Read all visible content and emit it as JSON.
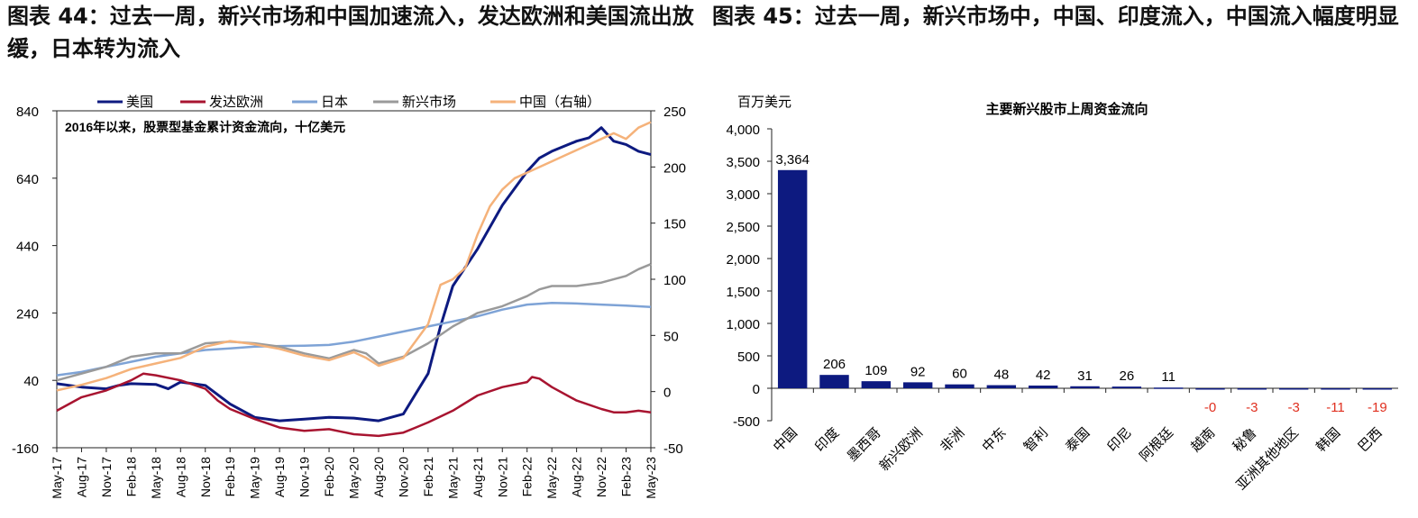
{
  "figure1_title": "图表 44：过去一周，新兴市场和中国加速流入，发达欧洲和美国流出放缓，日本转为流入",
  "figure2_title": "图表 45：过去一周，新兴市场中，中国、印度流入，中国流入幅度明显",
  "chart_data": [
    {
      "type": "line",
      "title": "",
      "annotation": "2016年以来，股票型基金累计资金流向，十亿美元",
      "x_tick_labels": [
        "May-17",
        "Aug-17",
        "Nov-17",
        "Feb-18",
        "May-18",
        "Aug-18",
        "Nov-18",
        "Feb-19",
        "May-19",
        "Aug-19",
        "Nov-19",
        "Feb-20",
        "May-20",
        "Aug-20",
        "Nov-20",
        "Feb-21",
        "May-21",
        "Aug-21",
        "Nov-21",
        "Feb-22",
        "May-22",
        "Aug-22",
        "Nov-22",
        "Feb-23",
        "May-23"
      ],
      "xlim": [
        0,
        24
      ],
      "ylim_left": [
        -160,
        840
      ],
      "yticks_left": [
        "840",
        "640",
        "440",
        "240",
        "40",
        "-160"
      ],
      "ylim_right": [
        -50,
        250
      ],
      "yticks_right": [
        "250",
        "200",
        "150",
        "100",
        "50",
        "0",
        "-50"
      ],
      "grid": false,
      "legend_position": "top",
      "series": [
        {
          "name": "美国",
          "axis": "left",
          "color": "#0d1a80",
          "x": [
            0,
            1,
            2,
            2.5,
            3,
            4,
            4.5,
            5,
            5.5,
            6,
            7,
            8,
            9,
            10,
            11,
            12,
            13,
            14,
            14.5,
            15,
            15.5,
            16,
            17,
            18,
            19,
            19.5,
            20,
            21,
            21.5,
            22,
            22.5,
            23,
            23.5,
            24
          ],
          "y": [
            30,
            20,
            15,
            25,
            30,
            28,
            15,
            35,
            30,
            25,
            -30,
            -70,
            -80,
            -75,
            -70,
            -72,
            -80,
            -60,
            0,
            60,
            200,
            320,
            430,
            560,
            660,
            700,
            720,
            750,
            760,
            790,
            750,
            740,
            720,
            710
          ]
        },
        {
          "name": "发达欧洲",
          "axis": "left",
          "color": "#a81430",
          "x": [
            0,
            1,
            2,
            3,
            3.5,
            4,
            5,
            6,
            6.5,
            7,
            8,
            9,
            10,
            11,
            12,
            13,
            14,
            14.5,
            15,
            16,
            17,
            18,
            19,
            19.2,
            19.5,
            20,
            21,
            22,
            22.5,
            23,
            23.5,
            24
          ],
          "y": [
            -50,
            -10,
            10,
            40,
            60,
            55,
            40,
            15,
            -20,
            -45,
            -75,
            -100,
            -110,
            -105,
            -120,
            -125,
            -115,
            -100,
            -85,
            -50,
            -5,
            20,
            35,
            50,
            45,
            20,
            -20,
            -45,
            -55,
            -55,
            -50,
            -55
          ]
        },
        {
          "name": "日本",
          "axis": "left",
          "color": "#7ea3d6",
          "x": [
            0,
            1,
            2,
            3,
            4,
            5,
            6,
            7,
            8,
            9,
            10,
            11,
            12,
            13,
            14,
            15,
            16,
            17,
            18,
            19,
            20,
            21,
            22,
            23,
            24
          ],
          "y": [
            55,
            65,
            80,
            95,
            110,
            120,
            130,
            135,
            140,
            142,
            143,
            145,
            155,
            170,
            185,
            200,
            215,
            230,
            250,
            265,
            270,
            268,
            265,
            262,
            258
          ]
        },
        {
          "name": "新兴市场",
          "axis": "left",
          "color": "#9a9a9a",
          "x": [
            0,
            1,
            2,
            3,
            4,
            5,
            6,
            7,
            8,
            9,
            10,
            11,
            12,
            12.5,
            13,
            14,
            15,
            16,
            17,
            18,
            19,
            19.5,
            20,
            21,
            22,
            23,
            23.5,
            24
          ],
          "y": [
            40,
            60,
            80,
            110,
            120,
            120,
            150,
            155,
            150,
            140,
            120,
            105,
            130,
            120,
            90,
            110,
            150,
            200,
            240,
            260,
            290,
            310,
            320,
            320,
            330,
            350,
            370,
            385
          ]
        },
        {
          "name": "中国（右轴）",
          "axis": "right",
          "color": "#f5b27a",
          "x": [
            0,
            1,
            2,
            3,
            4,
            5,
            6,
            7,
            8,
            9,
            10,
            11,
            12,
            12.5,
            13,
            14,
            15,
            15.5,
            16,
            16.5,
            17,
            17.5,
            18,
            18.5,
            19,
            20,
            21,
            22,
            22.5,
            23,
            23.5,
            24
          ],
          "y": [
            1,
            6,
            12,
            20,
            25,
            30,
            40,
            45,
            42,
            38,
            32,
            28,
            35,
            30,
            23,
            30,
            60,
            95,
            100,
            110,
            140,
            165,
            180,
            190,
            195,
            205,
            215,
            225,
            230,
            225,
            235,
            240
          ]
        }
      ]
    },
    {
      "type": "bar",
      "title": "主要新兴股市上周资金流向",
      "ylabel": "百万美元",
      "ylim": [
        -500,
        4000
      ],
      "yticks": [
        "4,000",
        "3,500",
        "3,000",
        "2,500",
        "2,000",
        "1,500",
        "1,000",
        "500",
        "0",
        "-500"
      ],
      "categories": [
        "中国",
        "印度",
        "墨西哥",
        "新兴欧洲",
        "非洲",
        "中东",
        "智利",
        "泰国",
        "印尼",
        "阿根廷",
        "越南",
        "秘鲁",
        "亚洲其他地区",
        "韩国",
        "巴西"
      ],
      "values": [
        3364,
        206,
        109,
        92,
        60,
        48,
        42,
        31,
        26,
        11,
        -0.4,
        -3,
        -3,
        -11,
        -19
      ],
      "value_labels": [
        "3,364",
        "206",
        "109",
        "92",
        "60",
        "48",
        "42",
        "31",
        "26",
        "11",
        "-0",
        "-3",
        "-3",
        "-11",
        "-19"
      ],
      "bar_color": "#0d1a80",
      "positive_label_color": "#000000",
      "negative_label_color": "#e03020"
    }
  ]
}
